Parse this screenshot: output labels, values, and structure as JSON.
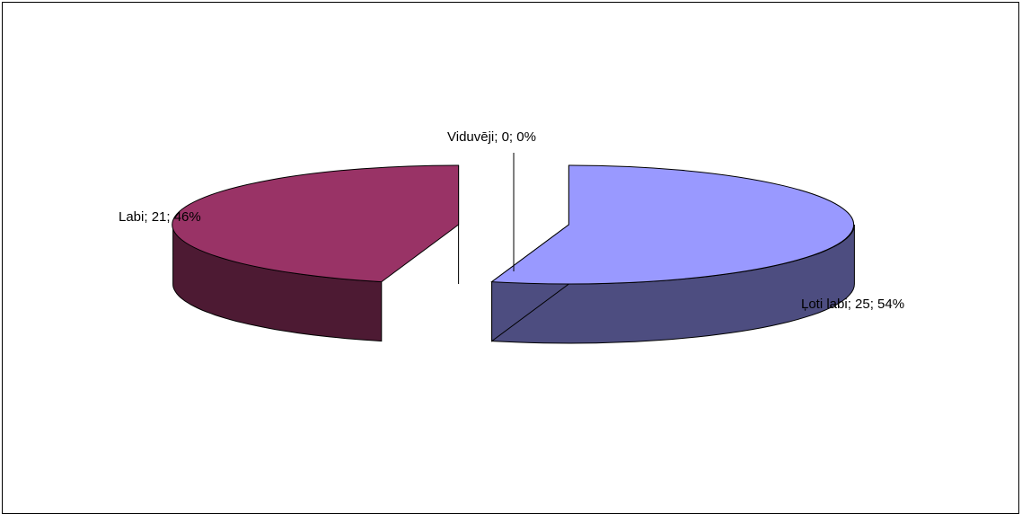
{
  "chart_data": {
    "type": "pie",
    "style": "3d-exploded",
    "title": "",
    "legend": "none",
    "slices": [
      {
        "name": "Ļoti labi",
        "value": 25,
        "percent": 54,
        "label": "Ļoti labi; 25; 54%",
        "color": "#9999FF",
        "side_color": "#4D4D80"
      },
      {
        "name": "Labi",
        "value": 21,
        "percent": 46,
        "label": "Labi; 21; 46%",
        "color": "#993366",
        "side_color": "#4D1A33"
      },
      {
        "name": "Viduvēji",
        "value": 0,
        "percent": 0,
        "label": "Viduvēji; 0; 0%",
        "color": "#FFFFCC",
        "side_color": "#808066"
      }
    ]
  },
  "colors": {
    "outline": "#000000",
    "background": "#FFFFFF"
  }
}
